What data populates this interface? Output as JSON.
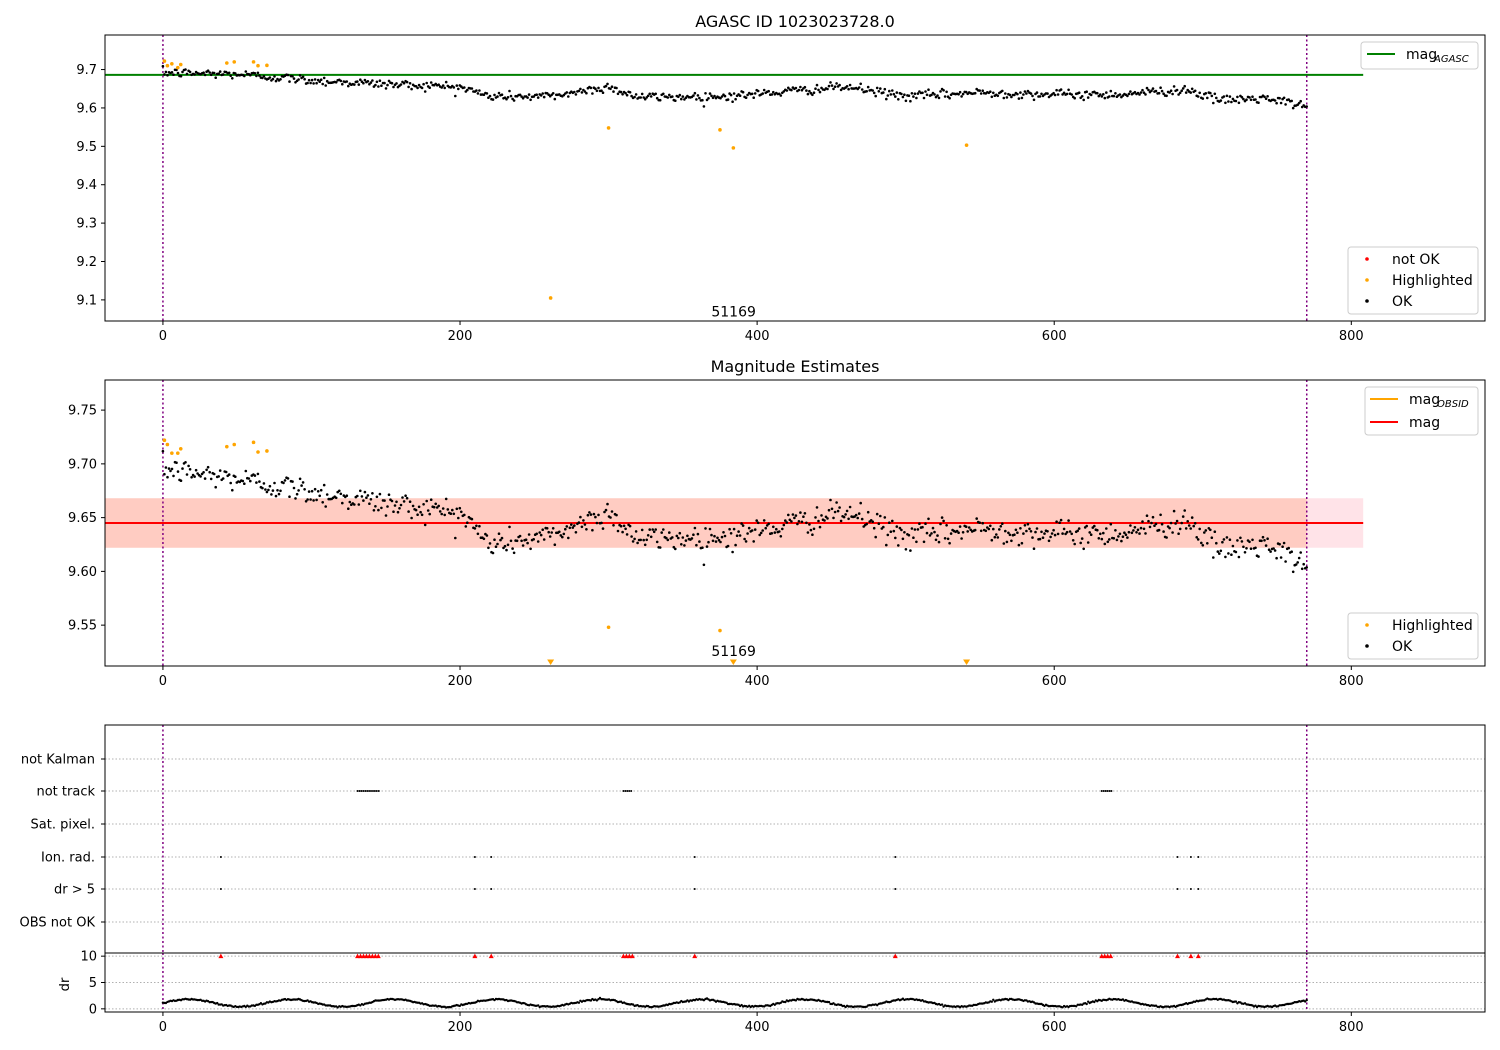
{
  "chart_data": [
    {
      "type": "scatter",
      "title": "AGASC ID 1023023728.0",
      "xlim": [
        -39,
        890
      ],
      "ylim": [
        9.045,
        9.79
      ],
      "xticks": [
        0,
        200,
        400,
        600,
        800
      ],
      "yticks": [
        9.1,
        9.2,
        9.3,
        9.4,
        9.5,
        9.6,
        9.7
      ],
      "vlines": [
        0,
        770
      ],
      "annotation": {
        "text": "51169",
        "x": 384,
        "y": 9.07
      },
      "lines": [
        {
          "name": "mag",
          "subscript": "AGASC",
          "y": 9.686,
          "xrange": [
            -39,
            808
          ],
          "color": "#008000"
        }
      ],
      "highlighted": [
        [
          1,
          9.722
        ],
        [
          3,
          9.71
        ],
        [
          6,
          9.715
        ],
        [
          10,
          9.705
        ],
        [
          12,
          9.713
        ],
        [
          43,
          9.717
        ],
        [
          48,
          9.72
        ],
        [
          61,
          9.72
        ],
        [
          64,
          9.71
        ],
        [
          70,
          9.711
        ],
        [
          261,
          9.105
        ],
        [
          300,
          9.548
        ],
        [
          375,
          9.543
        ],
        [
          384,
          9.496
        ],
        [
          541,
          9.503
        ]
      ],
      "ok_trend": [
        [
          0,
          9.692
        ],
        [
          50,
          9.688
        ],
        [
          100,
          9.672
        ],
        [
          150,
          9.662
        ],
        [
          200,
          9.655
        ],
        [
          220,
          9.63
        ],
        [
          260,
          9.63
        ],
        [
          300,
          9.655
        ],
        [
          320,
          9.628
        ],
        [
          380,
          9.63
        ],
        [
          420,
          9.643
        ],
        [
          460,
          9.655
        ],
        [
          500,
          9.63
        ],
        [
          550,
          9.64
        ],
        [
          600,
          9.635
        ],
        [
          640,
          9.635
        ],
        [
          690,
          9.648
        ],
        [
          710,
          9.62
        ],
        [
          740,
          9.625
        ],
        [
          770,
          9.605
        ]
      ],
      "ok_scatter": 0.011,
      "ok_count": 760,
      "legend_lines": [
        {
          "label": "mag",
          "sub": "AGASC",
          "color": "#008000"
        }
      ],
      "legend_points": [
        {
          "label": "not OK",
          "color": "#ff0000"
        },
        {
          "label": "Highlighted",
          "color": "#ffa500"
        },
        {
          "label": "OK",
          "color": "#000000"
        }
      ]
    },
    {
      "type": "scatter",
      "title": "Magnitude Estimates",
      "xlim": [
        -39,
        890
      ],
      "ylim": [
        9.512,
        9.778
      ],
      "xticks": [
        0,
        200,
        400,
        600,
        800
      ],
      "yticks": [
        9.55,
        9.6,
        9.65,
        9.7,
        9.75
      ],
      "vlines": [
        0,
        770
      ],
      "annotation": {
        "text": "51169",
        "x": 384,
        "y": 9.526
      },
      "bands": [
        {
          "y0": 9.622,
          "y1": 9.668,
          "color": "#ffc0cb",
          "opacity": 0.45
        },
        {
          "y0": 9.622,
          "y1": 9.668,
          "color": "#ffa07a",
          "opacity": 0.35,
          "xrange": [
            -39,
            770
          ]
        }
      ],
      "lines": [
        {
          "name": "mag",
          "y": 9.645,
          "xrange": [
            -39,
            808
          ],
          "color": "#ff0000"
        }
      ],
      "highlighted": [
        [
          1,
          9.722
        ],
        [
          3,
          9.718
        ],
        [
          6,
          9.71
        ],
        [
          10,
          9.71
        ],
        [
          12,
          9.714
        ],
        [
          43,
          9.716
        ],
        [
          48,
          9.718
        ],
        [
          61,
          9.72
        ],
        [
          64,
          9.711
        ],
        [
          70,
          9.712
        ],
        [
          300,
          9.548
        ],
        [
          375,
          9.545
        ]
      ],
      "below_markers": [
        261,
        384,
        541
      ],
      "ok_trend": [
        [
          0,
          9.695
        ],
        [
          50,
          9.686
        ],
        [
          100,
          9.674
        ],
        [
          150,
          9.663
        ],
        [
          200,
          9.655
        ],
        [
          220,
          9.625
        ],
        [
          260,
          9.632
        ],
        [
          300,
          9.655
        ],
        [
          320,
          9.63
        ],
        [
          380,
          9.632
        ],
        [
          420,
          9.643
        ],
        [
          460,
          9.655
        ],
        [
          500,
          9.632
        ],
        [
          550,
          9.64
        ],
        [
          600,
          9.635
        ],
        [
          640,
          9.635
        ],
        [
          690,
          9.648
        ],
        [
          710,
          9.62
        ],
        [
          740,
          9.625
        ],
        [
          770,
          9.605
        ]
      ],
      "ok_scatter": 0.011,
      "ok_count": 760,
      "legend_lines": [
        {
          "label": "mag",
          "sub": "OBSID",
          "color": "#ffa500"
        },
        {
          "label": "mag",
          "sub": "",
          "color": "#ff0000"
        }
      ],
      "legend_points": [
        {
          "label": "Highlighted",
          "color": "#ffa500"
        },
        {
          "label": "OK",
          "color": "#000000"
        }
      ]
    },
    {
      "type": "scatter",
      "title": "",
      "xlim": [
        -39,
        890
      ],
      "xticks": [
        0,
        200,
        400,
        600,
        800
      ],
      "vlines": [
        0,
        770
      ],
      "categories": [
        "not Kalman",
        "not track",
        "Sat. pixel.",
        "Ion. rad.",
        "dr > 5",
        "OBS not OK"
      ],
      "flags": {
        "not track": [
          [
            131,
            146
          ],
          [
            310,
            316
          ],
          [
            632,
            639
          ]
        ],
        "Ion. rad.": [
          [
            39,
            39
          ],
          [
            210,
            210
          ],
          [
            221,
            221
          ],
          [
            358,
            358
          ],
          [
            493,
            493
          ],
          [
            683,
            683
          ],
          [
            692,
            692
          ],
          [
            697,
            697
          ]
        ],
        "dr > 5": [
          [
            39,
            39
          ],
          [
            210,
            210
          ],
          [
            221,
            221
          ],
          [
            358,
            358
          ],
          [
            493,
            493
          ],
          [
            683,
            683
          ],
          [
            692,
            692
          ],
          [
            697,
            697
          ]
        ]
      }
    },
    {
      "type": "scatter",
      "title": "",
      "xlim": [
        -39,
        890
      ],
      "ylim": [
        -0.6,
        10.6
      ],
      "xticks": [
        0,
        200,
        400,
        600,
        800
      ],
      "yticks": [
        0,
        5,
        10
      ],
      "ylabel": "dr",
      "vlines": [
        0,
        770
      ],
      "capped_value": 10,
      "capped_points": [
        39,
        131,
        133,
        135,
        137,
        139,
        141,
        143,
        145,
        210,
        221,
        310,
        312,
        314,
        316,
        358,
        493,
        632,
        634,
        636,
        638,
        683,
        692,
        697
      ],
      "dr_base": 1.1,
      "dr_amplitude": 0.7,
      "ok_count": 760
    }
  ]
}
